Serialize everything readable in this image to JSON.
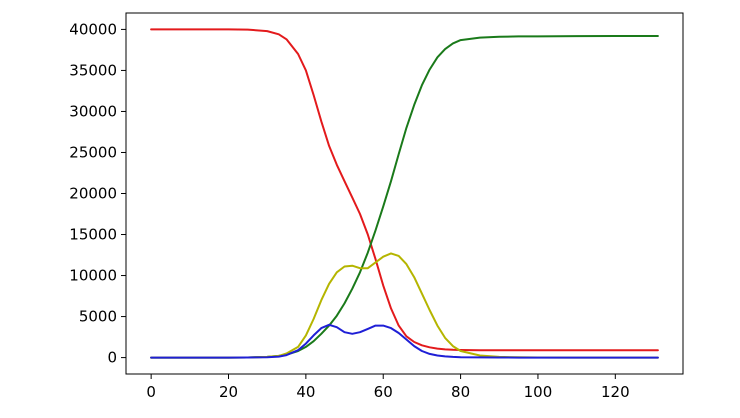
{
  "chart_data": {
    "type": "line",
    "title": "",
    "xlabel": "",
    "ylabel": "",
    "xlim": [
      -6.5,
      137.5
    ],
    "ylim": [
      -2000,
      42000
    ],
    "x_ticks": [
      0,
      20,
      40,
      60,
      80,
      100,
      120
    ],
    "y_ticks": [
      0,
      5000,
      10000,
      15000,
      20000,
      25000,
      30000,
      35000,
      40000
    ],
    "x_tick_labels": [
      "0",
      "20",
      "40",
      "60",
      "80",
      "100",
      "120"
    ],
    "y_tick_labels": [
      "0",
      "5000",
      "10000",
      "15000",
      "20000",
      "25000",
      "30000",
      "35000",
      "40000"
    ],
    "grid": false,
    "legend": "none",
    "x": [
      0,
      10,
      20,
      25,
      30,
      33,
      35,
      38,
      40,
      42,
      44,
      46,
      48,
      50,
      52,
      54,
      56,
      58,
      60,
      62,
      64,
      66,
      68,
      70,
      72,
      74,
      76,
      78,
      80,
      85,
      90,
      95,
      100,
      110,
      120,
      131
    ],
    "series": [
      {
        "color": "#e31a1c",
        "values": [
          40000,
          40000,
          40000,
          39980,
          39800,
          39400,
          38800,
          37000,
          35000,
          32000,
          28800,
          25800,
          23500,
          21500,
          19500,
          17500,
          15000,
          12000,
          8800,
          6000,
          3900,
          2600,
          1900,
          1500,
          1250,
          1100,
          1000,
          950,
          920,
          900,
          900,
          900,
          900,
          900,
          900,
          900
        ]
      },
      {
        "color": "#1a7a1a",
        "values": [
          0,
          0,
          0,
          10,
          80,
          200,
          350,
          800,
          1300,
          2000,
          2900,
          3900,
          5100,
          6600,
          8400,
          10400,
          12800,
          15500,
          18400,
          21500,
          24800,
          28000,
          30800,
          33200,
          35100,
          36600,
          37600,
          38300,
          38700,
          39000,
          39100,
          39150,
          39150,
          39180,
          39200,
          39200
        ]
      },
      {
        "color": "#b5b500",
        "values": [
          0,
          0,
          0,
          10,
          80,
          200,
          500,
          1300,
          2700,
          4700,
          7000,
          9000,
          10400,
          11100,
          11200,
          10900,
          10900,
          11600,
          12300,
          12700,
          12400,
          11400,
          9800,
          7800,
          5800,
          3900,
          2400,
          1400,
          800,
          250,
          80,
          30,
          10,
          0,
          0,
          0
        ]
      },
      {
        "color": "#1f1fd6",
        "values": [
          0,
          0,
          0,
          5,
          40,
          120,
          300,
          900,
          1700,
          2700,
          3600,
          4000,
          3700,
          3100,
          2900,
          3100,
          3500,
          3900,
          3900,
          3600,
          3000,
          2200,
          1400,
          800,
          450,
          250,
          150,
          80,
          50,
          20,
          10,
          0,
          0,
          0,
          0,
          0
        ]
      }
    ]
  }
}
